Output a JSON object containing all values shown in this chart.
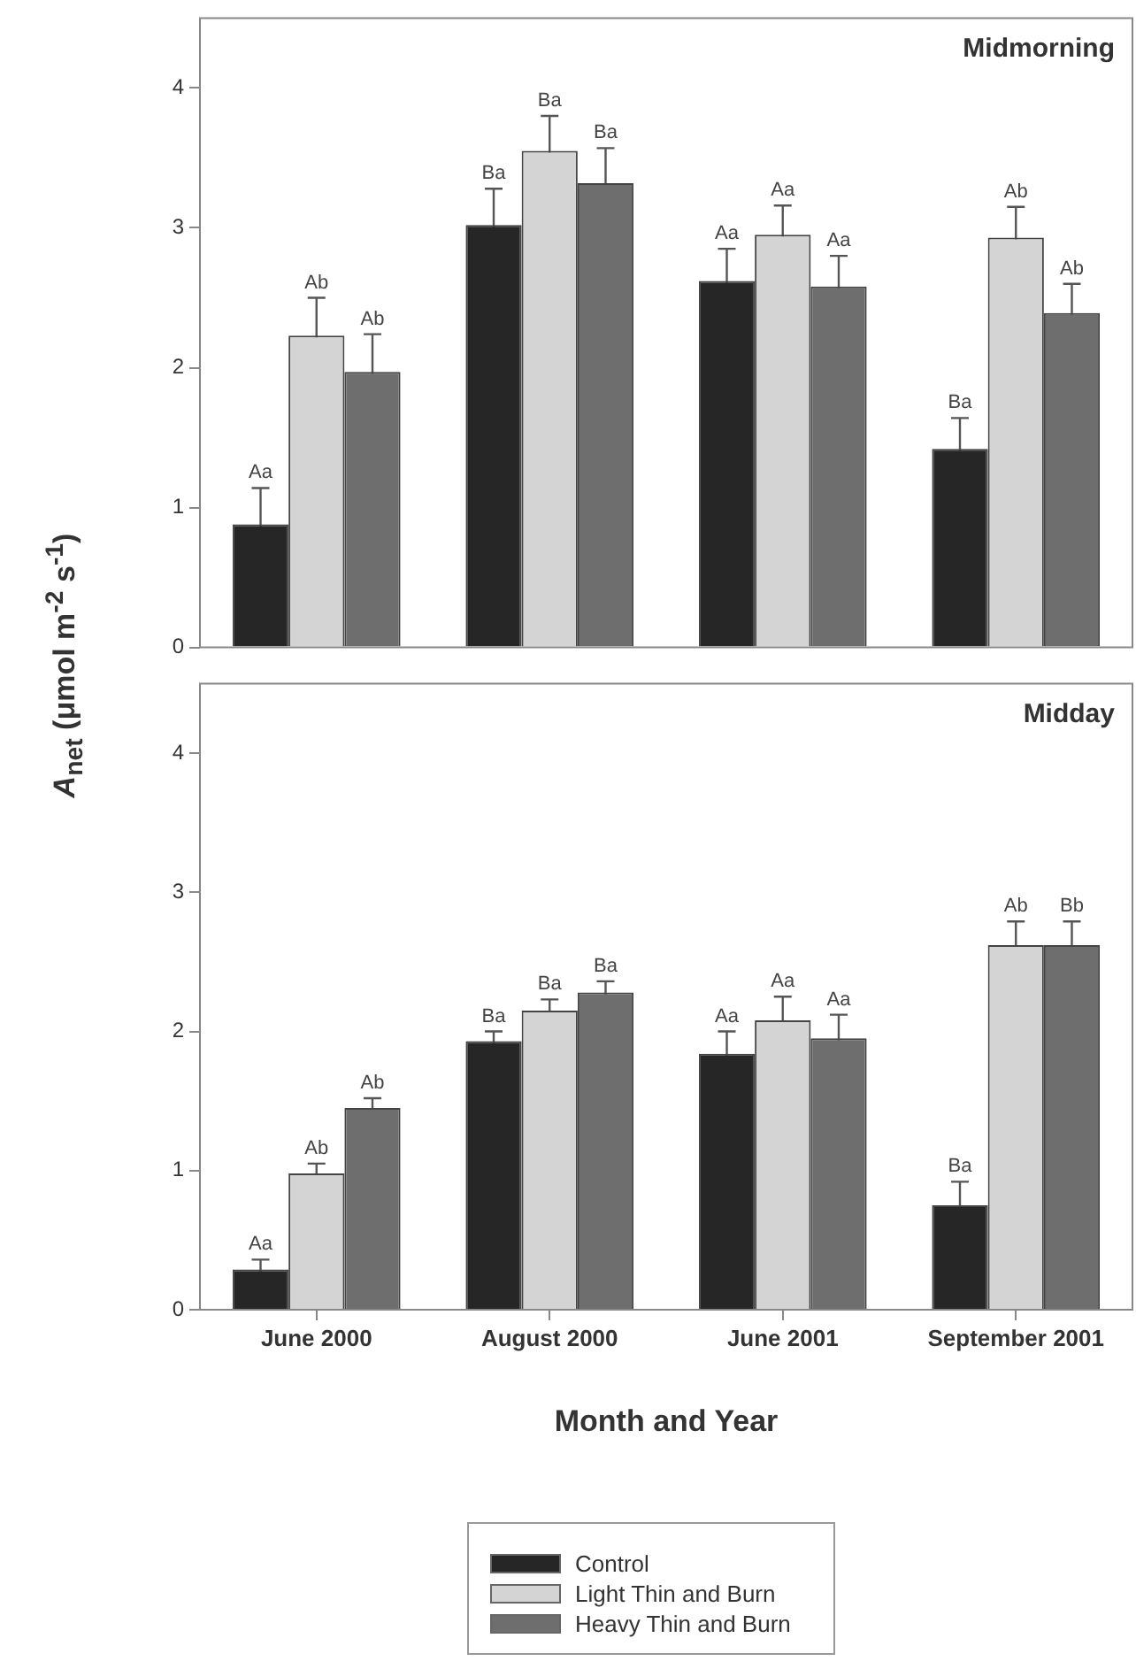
{
  "chart_data": [
    {
      "type": "bar",
      "title": "Midmorning",
      "ylabel": "A$_{net}$ (μmol m$^{-2}$ s$^{-1}$)",
      "categories": [
        null,
        null,
        null,
        null
      ],
      "series": [
        {
          "color": "#262626",
          "values": [
            0.88,
            3.02,
            2.62,
            1.42
          ],
          "errors": [
            0.26,
            0.26,
            0.23,
            0.22
          ],
          "value_labels": [
            "Aa",
            "Ba",
            "Aa",
            "Ba"
          ]
        },
        {
          "color": "#d4d4d4",
          "values": [
            2.23,
            3.55,
            2.95,
            2.93
          ],
          "errors": [
            0.27,
            0.25,
            0.21,
            0.22
          ],
          "value_labels": [
            "Ab",
            "Ba",
            "Aa",
            "Ab"
          ]
        },
        {
          "color": "#6e6e6e",
          "values": [
            1.97,
            3.32,
            2.58,
            2.39
          ],
          "errors": [
            0.27,
            0.25,
            0.22,
            0.21
          ],
          "value_labels": [
            "Ab",
            "Ba",
            "Aa",
            "Ab"
          ]
        }
      ],
      "ylim": [
        0,
        4.5
      ],
      "yticks": [
        0,
        1,
        2,
        3,
        4
      ],
      "tick_labels": "y"
    },
    {
      "type": "bar",
      "title": "Midday",
      "xlabel": "Month and Year",
      "categories": [
        "June 2000",
        "August 2000",
        "June 2001",
        "September 2001"
      ],
      "series": [
        {
          "name": "Control",
          "color": "#262626",
          "values": [
            0.29,
            1.93,
            1.84,
            0.75
          ],
          "errors": [
            0.07,
            0.07,
            0.16,
            0.17
          ],
          "value_labels": [
            "Aa",
            "Ba",
            "Aa",
            "Ba"
          ]
        },
        {
          "name": "Light Thin and Burn",
          "color": "#d4d4d4",
          "values": [
            0.98,
            2.15,
            2.08,
            2.62
          ],
          "errors": [
            0.07,
            0.08,
            0.17,
            0.17
          ],
          "value_labels": [
            "Ab",
            "Ba",
            "Aa",
            "Ab"
          ]
        },
        {
          "name": "Heavy Thin and Burn",
          "color": "#6e6e6e",
          "values": [
            1.45,
            2.28,
            1.95,
            2.62
          ],
          "errors": [
            0.07,
            0.08,
            0.17,
            0.17
          ],
          "value_labels": [
            "Ab",
            "Ba",
            "Aa",
            "Bb"
          ]
        }
      ],
      "ylim": [
        0,
        4.5
      ],
      "yticks": [
        0,
        1,
        2,
        3,
        4
      ],
      "legend": "bottom"
    }
  ]
}
